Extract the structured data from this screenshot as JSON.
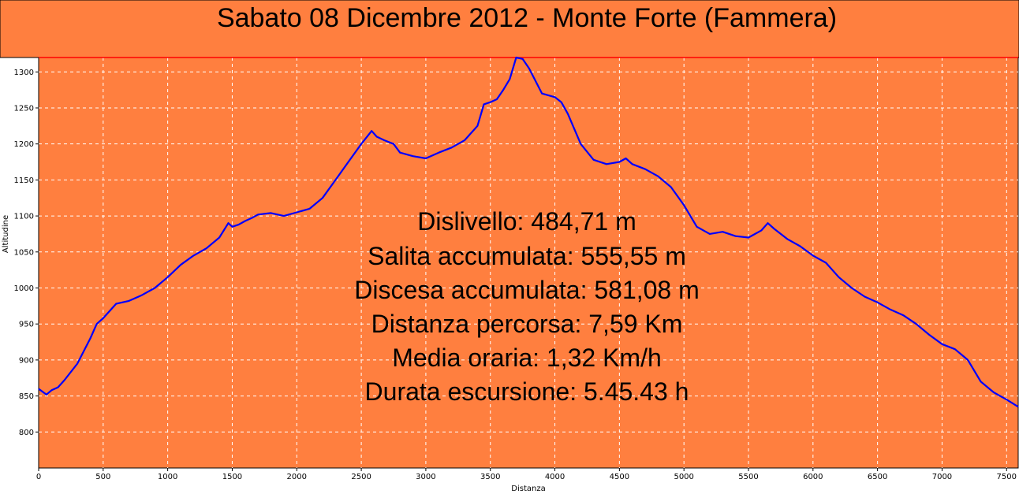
{
  "chart_data": {
    "type": "line",
    "title": "Sabato 08 Dicembre 2012 - Monte Forte (Fammera)",
    "xlabel": "Distanza",
    "ylabel": "Altitudine",
    "xlim": [
      0,
      7590
    ],
    "ylim": [
      750,
      1320
    ],
    "x_ticks": [
      0,
      500,
      1000,
      1500,
      2000,
      2500,
      3000,
      3500,
      4000,
      4500,
      5000,
      5500,
      6000,
      6500,
      7000,
      7500
    ],
    "y_ticks": [
      800,
      850,
      900,
      950,
      1000,
      1050,
      1100,
      1150,
      1200,
      1250,
      1300
    ],
    "grid": true,
    "max_line": 1320,
    "colors": {
      "background": "#ff7f3f",
      "line": "#0000ff",
      "max_line": "#ff0000",
      "grid": "#ffffff"
    },
    "series": [
      {
        "x": [
          0,
          60,
          100,
          150,
          200,
          300,
          400,
          450,
          500,
          600,
          700,
          800,
          900,
          1000,
          1100,
          1200,
          1300,
          1400,
          1470,
          1500,
          1550,
          1600,
          1650,
          1700,
          1800,
          1900,
          2000,
          2100,
          2200,
          2300,
          2400,
          2500,
          2580,
          2620,
          2680,
          2750,
          2800,
          2900,
          3000,
          3100,
          3200,
          3300,
          3400,
          3450,
          3500,
          3550,
          3600,
          3650,
          3700,
          3750,
          3800,
          3900,
          4000,
          4050,
          4100,
          4200,
          4300,
          4400,
          4500,
          4550,
          4600,
          4700,
          4800,
          4900,
          5000,
          5100,
          5200,
          5300,
          5400,
          5500,
          5600,
          5650,
          5700,
          5800,
          5900,
          6000,
          6100,
          6200,
          6300,
          6400,
          6500,
          6600,
          6700,
          6800,
          6900,
          7000,
          7100,
          7200,
          7300,
          7400,
          7500,
          7590
        ],
        "y": [
          860,
          852,
          858,
          862,
          872,
          895,
          930,
          950,
          958,
          978,
          982,
          990,
          1000,
          1015,
          1032,
          1045,
          1055,
          1070,
          1090,
          1085,
          1088,
          1093,
          1097,
          1102,
          1104,
          1100,
          1105,
          1110,
          1125,
          1150,
          1175,
          1200,
          1218,
          1210,
          1205,
          1200,
          1188,
          1183,
          1180,
          1188,
          1195,
          1205,
          1225,
          1255,
          1258,
          1262,
          1275,
          1290,
          1320,
          1318,
          1305,
          1270,
          1265,
          1258,
          1242,
          1200,
          1178,
          1172,
          1175,
          1180,
          1172,
          1165,
          1155,
          1140,
          1115,
          1085,
          1075,
          1078,
          1072,
          1070,
          1080,
          1090,
          1082,
          1068,
          1058,
          1045,
          1035,
          1015,
          1000,
          988,
          980,
          970,
          962,
          950,
          935,
          922,
          915,
          900,
          870,
          855,
          845,
          835
        ]
      }
    ]
  },
  "stats": {
    "dislivello": "Dislivello: 484,71 m",
    "salita": "Salita accumulata: 555,55 m",
    "discesa": "Discesa accumulata: 581,08 m",
    "distanza": "Distanza percorsa: 7,59 Km",
    "media": "Media oraria: 1,32 Km/h",
    "durata": "Durata escursione: 5.45.43 h"
  }
}
